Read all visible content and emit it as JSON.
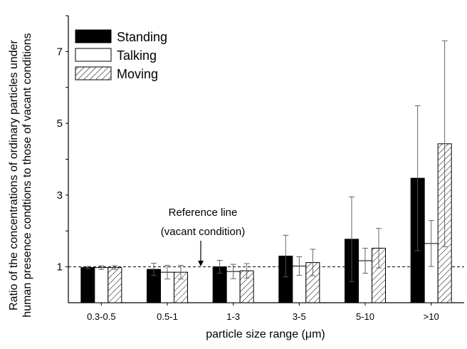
{
  "chart_data": {
    "type": "bar",
    "xlabel": "particle size range (μm)",
    "ylabel_lines": [
      "Ratio of the concentrations of ordinary particles under",
      "human presence condtions to those of vacant conditions"
    ],
    "categories": [
      "0.3-0.5",
      "0.5-1",
      "1-3",
      "3-5",
      "5-10",
      ">10"
    ],
    "yticks": [
      "1",
      "3",
      "5",
      "7"
    ],
    "ylim": [
      0,
      8
    ],
    "series": [
      {
        "name": "Standing",
        "fill": "#000000",
        "values": [
          0.98,
          0.93,
          1.0,
          1.3,
          1.77,
          3.47
        ],
        "errors": [
          0.03,
          0.17,
          0.18,
          0.58,
          1.18,
          2.02
        ]
      },
      {
        "name": "Talking",
        "fill": "#ffffff",
        "values": [
          0.98,
          0.85,
          0.87,
          1.02,
          1.17,
          1.65
        ],
        "errors": [
          0.05,
          0.19,
          0.2,
          0.26,
          0.35,
          0.64
        ]
      },
      {
        "name": "Moving",
        "fill": "hatch",
        "values": [
          0.98,
          0.85,
          0.89,
          1.12,
          1.52,
          4.43
        ],
        "errors": [
          0.05,
          0.19,
          0.2,
          0.37,
          0.55,
          2.87
        ]
      }
    ],
    "reference_line": {
      "y": 1,
      "style": "dashed"
    },
    "annotation": {
      "lines": [
        "Reference line",
        "(vacant condition)"
      ],
      "points_to_y": 1
    },
    "legend_position": "top-left",
    "grid": false
  }
}
